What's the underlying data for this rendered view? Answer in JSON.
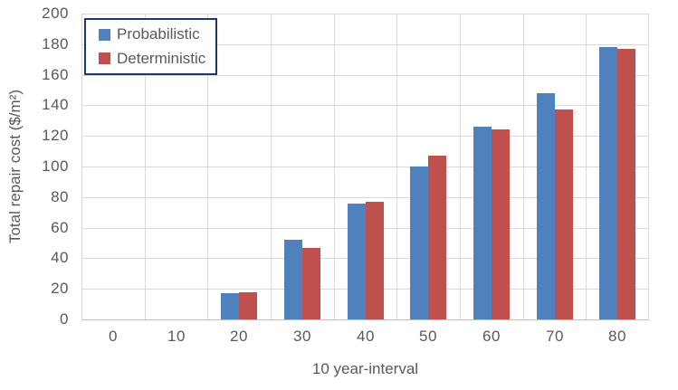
{
  "chart_data": {
    "type": "bar",
    "title": "",
    "xlabel": "10 year-interval",
    "ylabel": "Total repair cost ($/m²)",
    "categories": [
      "0",
      "10",
      "20",
      "30",
      "40",
      "50",
      "60",
      "70",
      "80"
    ],
    "series": [
      {
        "name": "Probabilistic",
        "color": "#4F81BD",
        "values": [
          0,
          0,
          17,
          52,
          76,
          100,
          126,
          148,
          178
        ]
      },
      {
        "name": "Deterministic",
        "color": "#C0504D",
        "values": [
          0,
          0,
          18,
          47,
          77,
          107,
          124,
          137,
          177
        ]
      }
    ],
    "ylim": [
      0,
      200
    ],
    "ytick_step": 20,
    "yticks": [
      "0",
      "20",
      "40",
      "60",
      "80",
      "100",
      "120",
      "140",
      "160",
      "180",
      "200"
    ],
    "grid": "horizontal and vertical major gridlines",
    "legend_position": "top-left inside plot",
    "colors": {
      "gridline": "#D9D9D9",
      "axis_line": "#BFBFBF",
      "tick_text": "#595959",
      "legend_border": "#1F3864",
      "background": "#FFFFFF"
    }
  }
}
